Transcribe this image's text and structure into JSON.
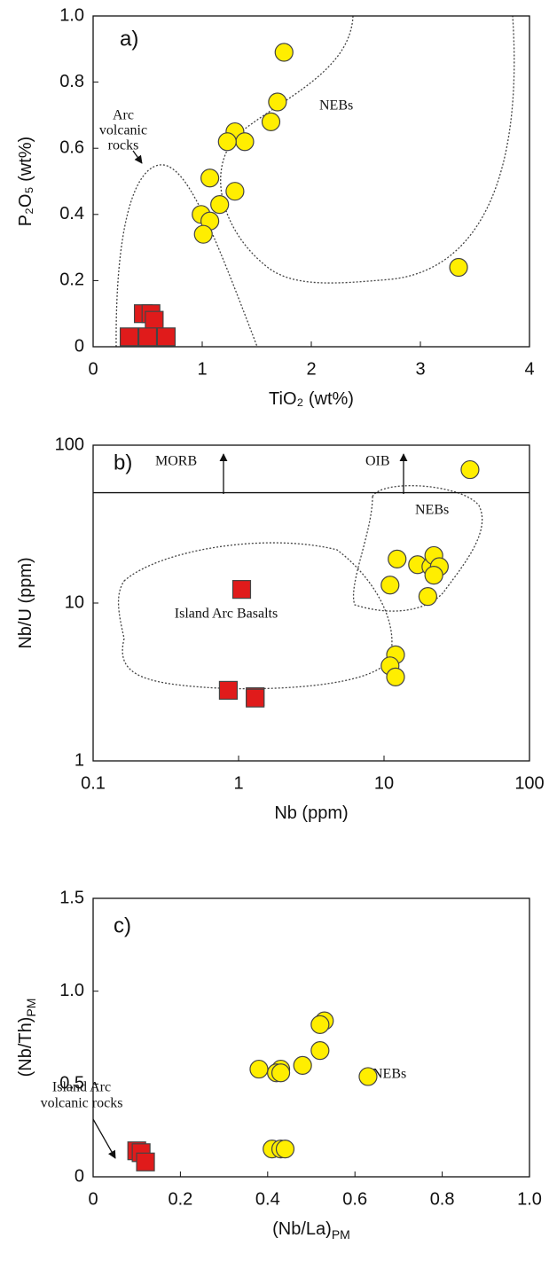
{
  "chart_data": [
    {
      "type": "scatter",
      "panel_label": "a)",
      "x_label": "TiO₂ (wt%)",
      "y_label": "P₂O₅ (wt%)",
      "xlim": [
        0,
        4
      ],
      "xticks": [
        0,
        1,
        2,
        3,
        4
      ],
      "ylim": [
        0,
        1
      ],
      "yticks": [
        0,
        0.2,
        0.4,
        0.6,
        0.8,
        {
          "value": 1,
          "label": "1.0"
        }
      ],
      "annotations": [
        "Arc",
        "volcanic",
        "rocks",
        "NEBs"
      ],
      "series": [
        {
          "marker": "circle",
          "color": "#ffee00",
          "x": [
            1.75,
            1.69,
            1.63,
            1.3,
            1.39,
            1.23,
            1.07,
            1.3,
            1.16,
            0.99,
            1.07,
            1.01,
            3.35
          ],
          "values": [
            0.89,
            0.74,
            0.68,
            0.65,
            0.62,
            0.62,
            0.51,
            0.47,
            0.43,
            0.4,
            0.38,
            0.34,
            0.24
          ]
        },
        {
          "marker": "square",
          "color": "#e01b1b",
          "x": [
            0.46,
            0.53,
            0.56,
            0.33,
            0.5,
            0.67
          ],
          "values": [
            0.1,
            0.1,
            0.08,
            0.03,
            0.03,
            0.03
          ]
        }
      ]
    },
    {
      "type": "scatter",
      "panel_label": "b)",
      "x_label": "Nb (ppm)",
      "y_label": "Nb/U (ppm)",
      "xlog": true,
      "ylog": true,
      "xlim": [
        0.1,
        100
      ],
      "xticks": [
        0.1,
        1,
        10,
        100
      ],
      "ylim": [
        1,
        100
      ],
      "yticks": [
        1,
        10,
        100
      ],
      "hline": 50,
      "annotations": [
        "MORB",
        "OIB",
        "NEBs",
        "Island Arc Basalts"
      ],
      "series": [
        {
          "marker": "circle",
          "color": "#ffee00",
          "x": [
            39,
            12.3,
            17,
            21,
            22,
            24,
            22,
            11,
            20,
            12,
            11,
            12
          ],
          "values": [
            70,
            19,
            17.5,
            17,
            20,
            17,
            15,
            13,
            11,
            4.7,
            4,
            3.4
          ]
        },
        {
          "marker": "square",
          "color": "#e01b1b",
          "x": [
            1.05,
            0.85,
            1.3,
            1.3
          ],
          "values": [
            12.2,
            2.8,
            2.55,
            2.5
          ]
        }
      ]
    },
    {
      "type": "scatter",
      "panel_label": "c)",
      "x_label": "(Nb/La)",
      "x_label_sub": "PM",
      "y_label": "(Nb/Th)",
      "y_label_sub": "PM",
      "xlim": [
        0,
        1
      ],
      "xticks": [
        0,
        0.2,
        0.4,
        0.6,
        0.8,
        {
          "value": 1,
          "label": "1.0"
        }
      ],
      "ylim": [
        0,
        1.5
      ],
      "yticks": [
        0,
        0.5,
        {
          "value": 1,
          "label": "1.0"
        },
        1.5
      ],
      "annotations": [
        "Island Arc",
        "volcanic rocks",
        "NEBs"
      ],
      "series": [
        {
          "marker": "circle",
          "color": "#ffee00",
          "x": [
            0.53,
            0.52,
            0.52,
            0.63,
            0.48,
            0.43,
            0.42,
            0.43,
            0.38,
            0.41,
            0.43,
            0.44
          ],
          "values": [
            0.84,
            0.82,
            0.68,
            0.54,
            0.6,
            0.58,
            0.56,
            0.56,
            0.58,
            0.15,
            0.15,
            0.15
          ]
        },
        {
          "marker": "square",
          "color": "#e01b1b",
          "x": [
            0.1,
            0.11,
            0.12
          ],
          "values": [
            0.14,
            0.13,
            0.08
          ]
        }
      ]
    }
  ]
}
